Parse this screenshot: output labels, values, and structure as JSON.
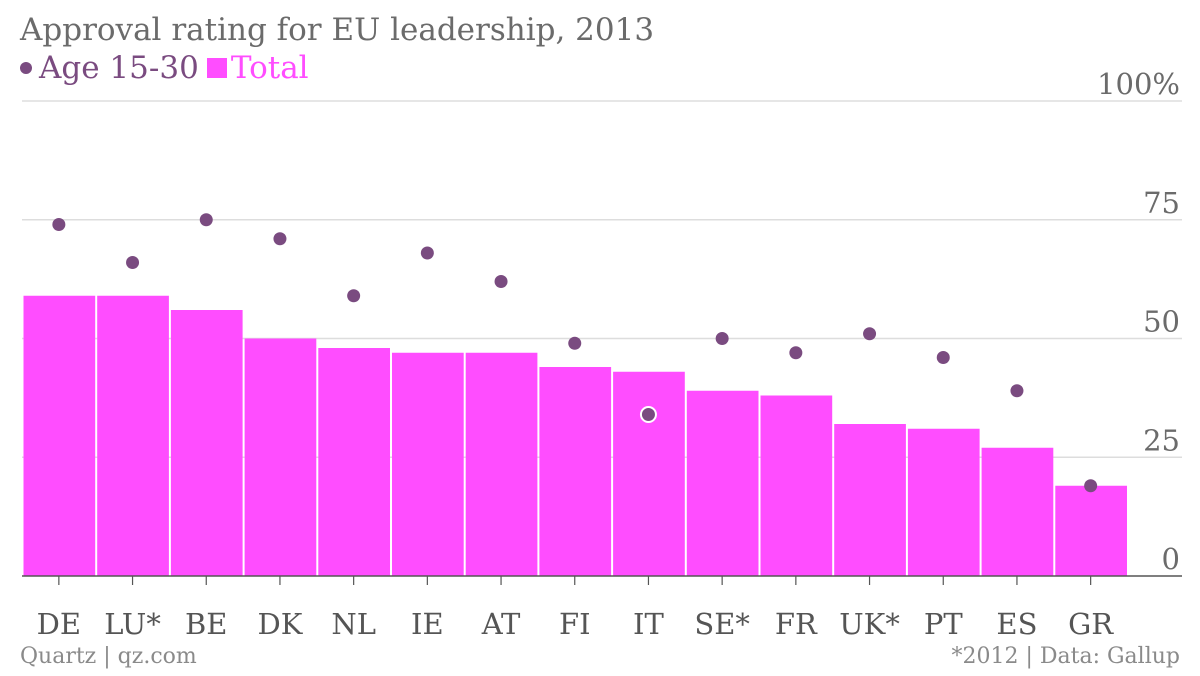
{
  "title": "Approval rating for EU leadership, 2013",
  "footer": {
    "source_left": "Quartz | qz.com",
    "source_right": "*2012 | Data: Gallup"
  },
  "colors": {
    "bar": "#ff4dff",
    "dot": "#7a4b80",
    "grid": "#dddddd",
    "axis": "#555555",
    "text": "#6b6b6b"
  },
  "chart_data": {
    "type": "bar",
    "title": "Approval rating for EU leadership, 2013",
    "categories": [
      "DE",
      "LU*",
      "BE",
      "DK",
      "NL",
      "IE",
      "AT",
      "FI",
      "IT",
      "SE*",
      "FR",
      "UK*",
      "PT",
      "ES",
      "GR"
    ],
    "series": [
      {
        "name": "Age 15-30",
        "mark": "dot",
        "values": [
          74,
          66,
          75,
          71,
          59,
          68,
          62,
          49,
          34,
          50,
          47,
          51,
          46,
          39,
          19
        ]
      },
      {
        "name": "Total",
        "mark": "bar",
        "values": [
          59,
          59,
          56,
          50,
          48,
          47,
          47,
          44,
          43,
          39,
          38,
          32,
          31,
          27,
          19
        ]
      }
    ],
    "yticks": [
      0,
      25,
      50,
      75,
      100
    ],
    "ytick_labels": [
      "0",
      "25",
      "50",
      "75",
      "100%"
    ],
    "ylim": [
      0,
      100
    ],
    "grid": true,
    "legend": "top-left",
    "xlabel": "",
    "ylabel": ""
  }
}
